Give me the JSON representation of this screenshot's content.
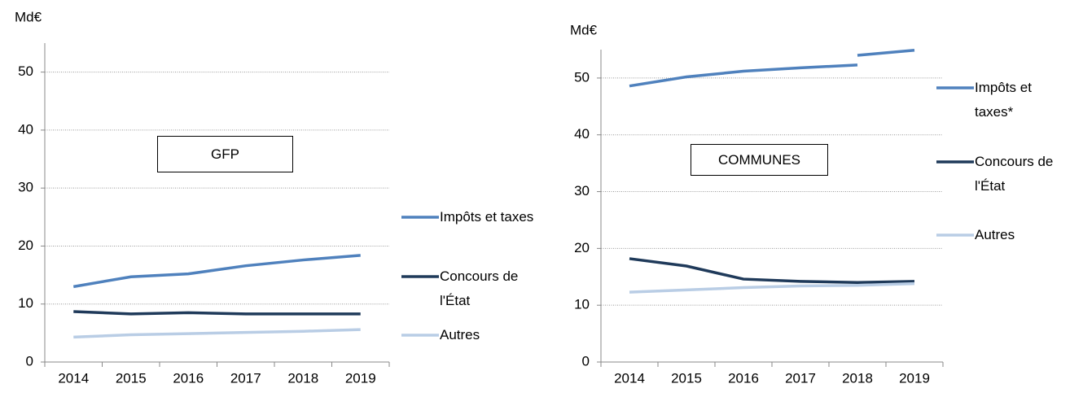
{
  "chart_data": [
    {
      "type": "line",
      "title": "GFP",
      "y_label": "Md€",
      "categories": [
        "2014",
        "2015",
        "2016",
        "2017",
        "2018",
        "2019"
      ],
      "series": [
        {
          "name": "Impôts et taxes",
          "color": "#4f81bd",
          "values": [
            13.0,
            14.7,
            15.2,
            16.6,
            17.6,
            18.4
          ]
        },
        {
          "name": "Concours de l'État",
          "color": "#1f3a5a",
          "values": [
            8.7,
            8.3,
            8.5,
            8.3,
            8.3,
            8.3
          ]
        },
        {
          "name": "Autres",
          "color": "#b9cde5",
          "values": [
            4.3,
            4.7,
            4.9,
            5.1,
            5.3,
            5.6
          ]
        }
      ],
      "ylim": [
        0,
        55
      ],
      "yticks": [
        0,
        10,
        20,
        30,
        40,
        50
      ],
      "grid": true,
      "legend": "right"
    },
    {
      "type": "line",
      "title": "COMMUNES",
      "y_label": "Md€",
      "categories": [
        "2014",
        "2015",
        "2016",
        "2017",
        "2018",
        "2019"
      ],
      "series": [
        {
          "name": "Impôts et taxes*",
          "color": "#4f81bd",
          "values": [
            48.6,
            50.2,
            51.2,
            51.8,
            52.3,
            null
          ]
        },
        {
          "color": "#4f81bd",
          "values": [
            null,
            null,
            null,
            null,
            54.0,
            54.9
          ]
        },
        {
          "name": "Concours de l'État",
          "color": "#1f3a5a",
          "values": [
            18.2,
            16.9,
            14.6,
            14.2,
            14.0,
            14.2
          ]
        },
        {
          "name": "Autres",
          "color": "#b9cde5",
          "values": [
            12.3,
            12.7,
            13.1,
            13.4,
            13.5,
            13.8
          ]
        }
      ],
      "ylim": [
        0,
        55
      ],
      "yticks": [
        0,
        10,
        20,
        30,
        40,
        50
      ],
      "grid": true,
      "legend": "right"
    }
  ]
}
